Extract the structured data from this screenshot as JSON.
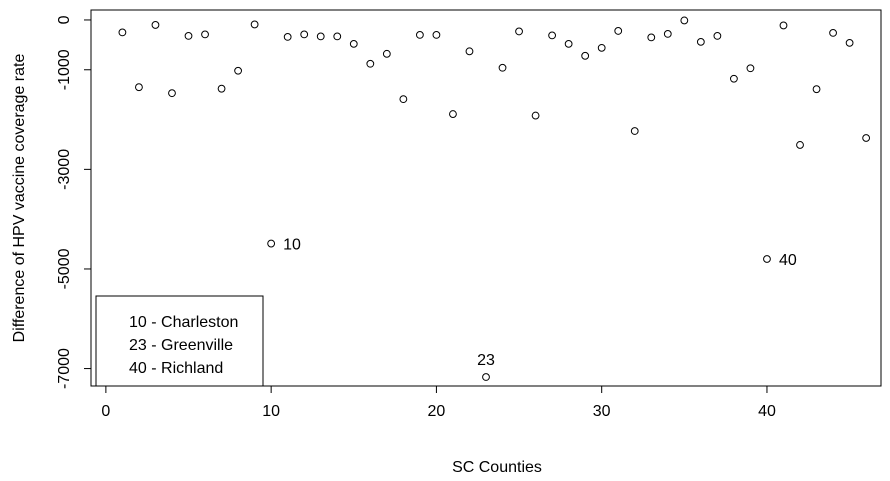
{
  "chart_data": {
    "type": "scatter",
    "title": "",
    "xlabel": "SC Counties",
    "ylabel": "Difference of HPV vaccine coverage rate",
    "xlim": [
      -0.9,
      46.9
    ],
    "ylim": [
      -7350,
      200
    ],
    "x_ticks": [
      0,
      10,
      20,
      30,
      40
    ],
    "y_ticks": [
      0,
      -1000,
      -3000,
      -5000,
      -7000
    ],
    "points": [
      {
        "x": 1,
        "y": -250
      },
      {
        "x": 2,
        "y": -1350
      },
      {
        "x": 3,
        "y": -100
      },
      {
        "x": 4,
        "y": -1470
      },
      {
        "x": 5,
        "y": -320
      },
      {
        "x": 6,
        "y": -290
      },
      {
        "x": 7,
        "y": -1380
      },
      {
        "x": 8,
        "y": -1020
      },
      {
        "x": 9,
        "y": -90
      },
      {
        "x": 10,
        "y": -4490,
        "label": "10"
      },
      {
        "x": 11,
        "y": -340
      },
      {
        "x": 12,
        "y": -290
      },
      {
        "x": 13,
        "y": -330
      },
      {
        "x": 14,
        "y": -330
      },
      {
        "x": 15,
        "y": -480
      },
      {
        "x": 16,
        "y": -880
      },
      {
        "x": 17,
        "y": -680
      },
      {
        "x": 18,
        "y": -1590
      },
      {
        "x": 19,
        "y": -300
      },
      {
        "x": 20,
        "y": -300
      },
      {
        "x": 21,
        "y": -1890
      },
      {
        "x": 22,
        "y": -630
      },
      {
        "x": 23,
        "y": -7170,
        "label": "23"
      },
      {
        "x": 24,
        "y": -960
      },
      {
        "x": 25,
        "y": -230
      },
      {
        "x": 26,
        "y": -1920
      },
      {
        "x": 27,
        "y": -310
      },
      {
        "x": 28,
        "y": -480
      },
      {
        "x": 29,
        "y": -720
      },
      {
        "x": 30,
        "y": -560
      },
      {
        "x": 31,
        "y": -220
      },
      {
        "x": 32,
        "y": -2230
      },
      {
        "x": 33,
        "y": -350
      },
      {
        "x": 34,
        "y": -280
      },
      {
        "x": 35,
        "y": -10
      },
      {
        "x": 36,
        "y": -440
      },
      {
        "x": 37,
        "y": -320
      },
      {
        "x": 38,
        "y": -1180
      },
      {
        "x": 39,
        "y": -970
      },
      {
        "x": 40,
        "y": -4800,
        "label": "40"
      },
      {
        "x": 41,
        "y": -110
      },
      {
        "x": 42,
        "y": -2510
      },
      {
        "x": 43,
        "y": -1390
      },
      {
        "x": 44,
        "y": -260
      },
      {
        "x": 45,
        "y": -460
      },
      {
        "x": 46,
        "y": -2370
      }
    ],
    "legend": {
      "position": "bottom-left",
      "entries": [
        "10 - Charleston",
        "23 - Greenville",
        "40 - Richland"
      ]
    },
    "grid": false
  }
}
